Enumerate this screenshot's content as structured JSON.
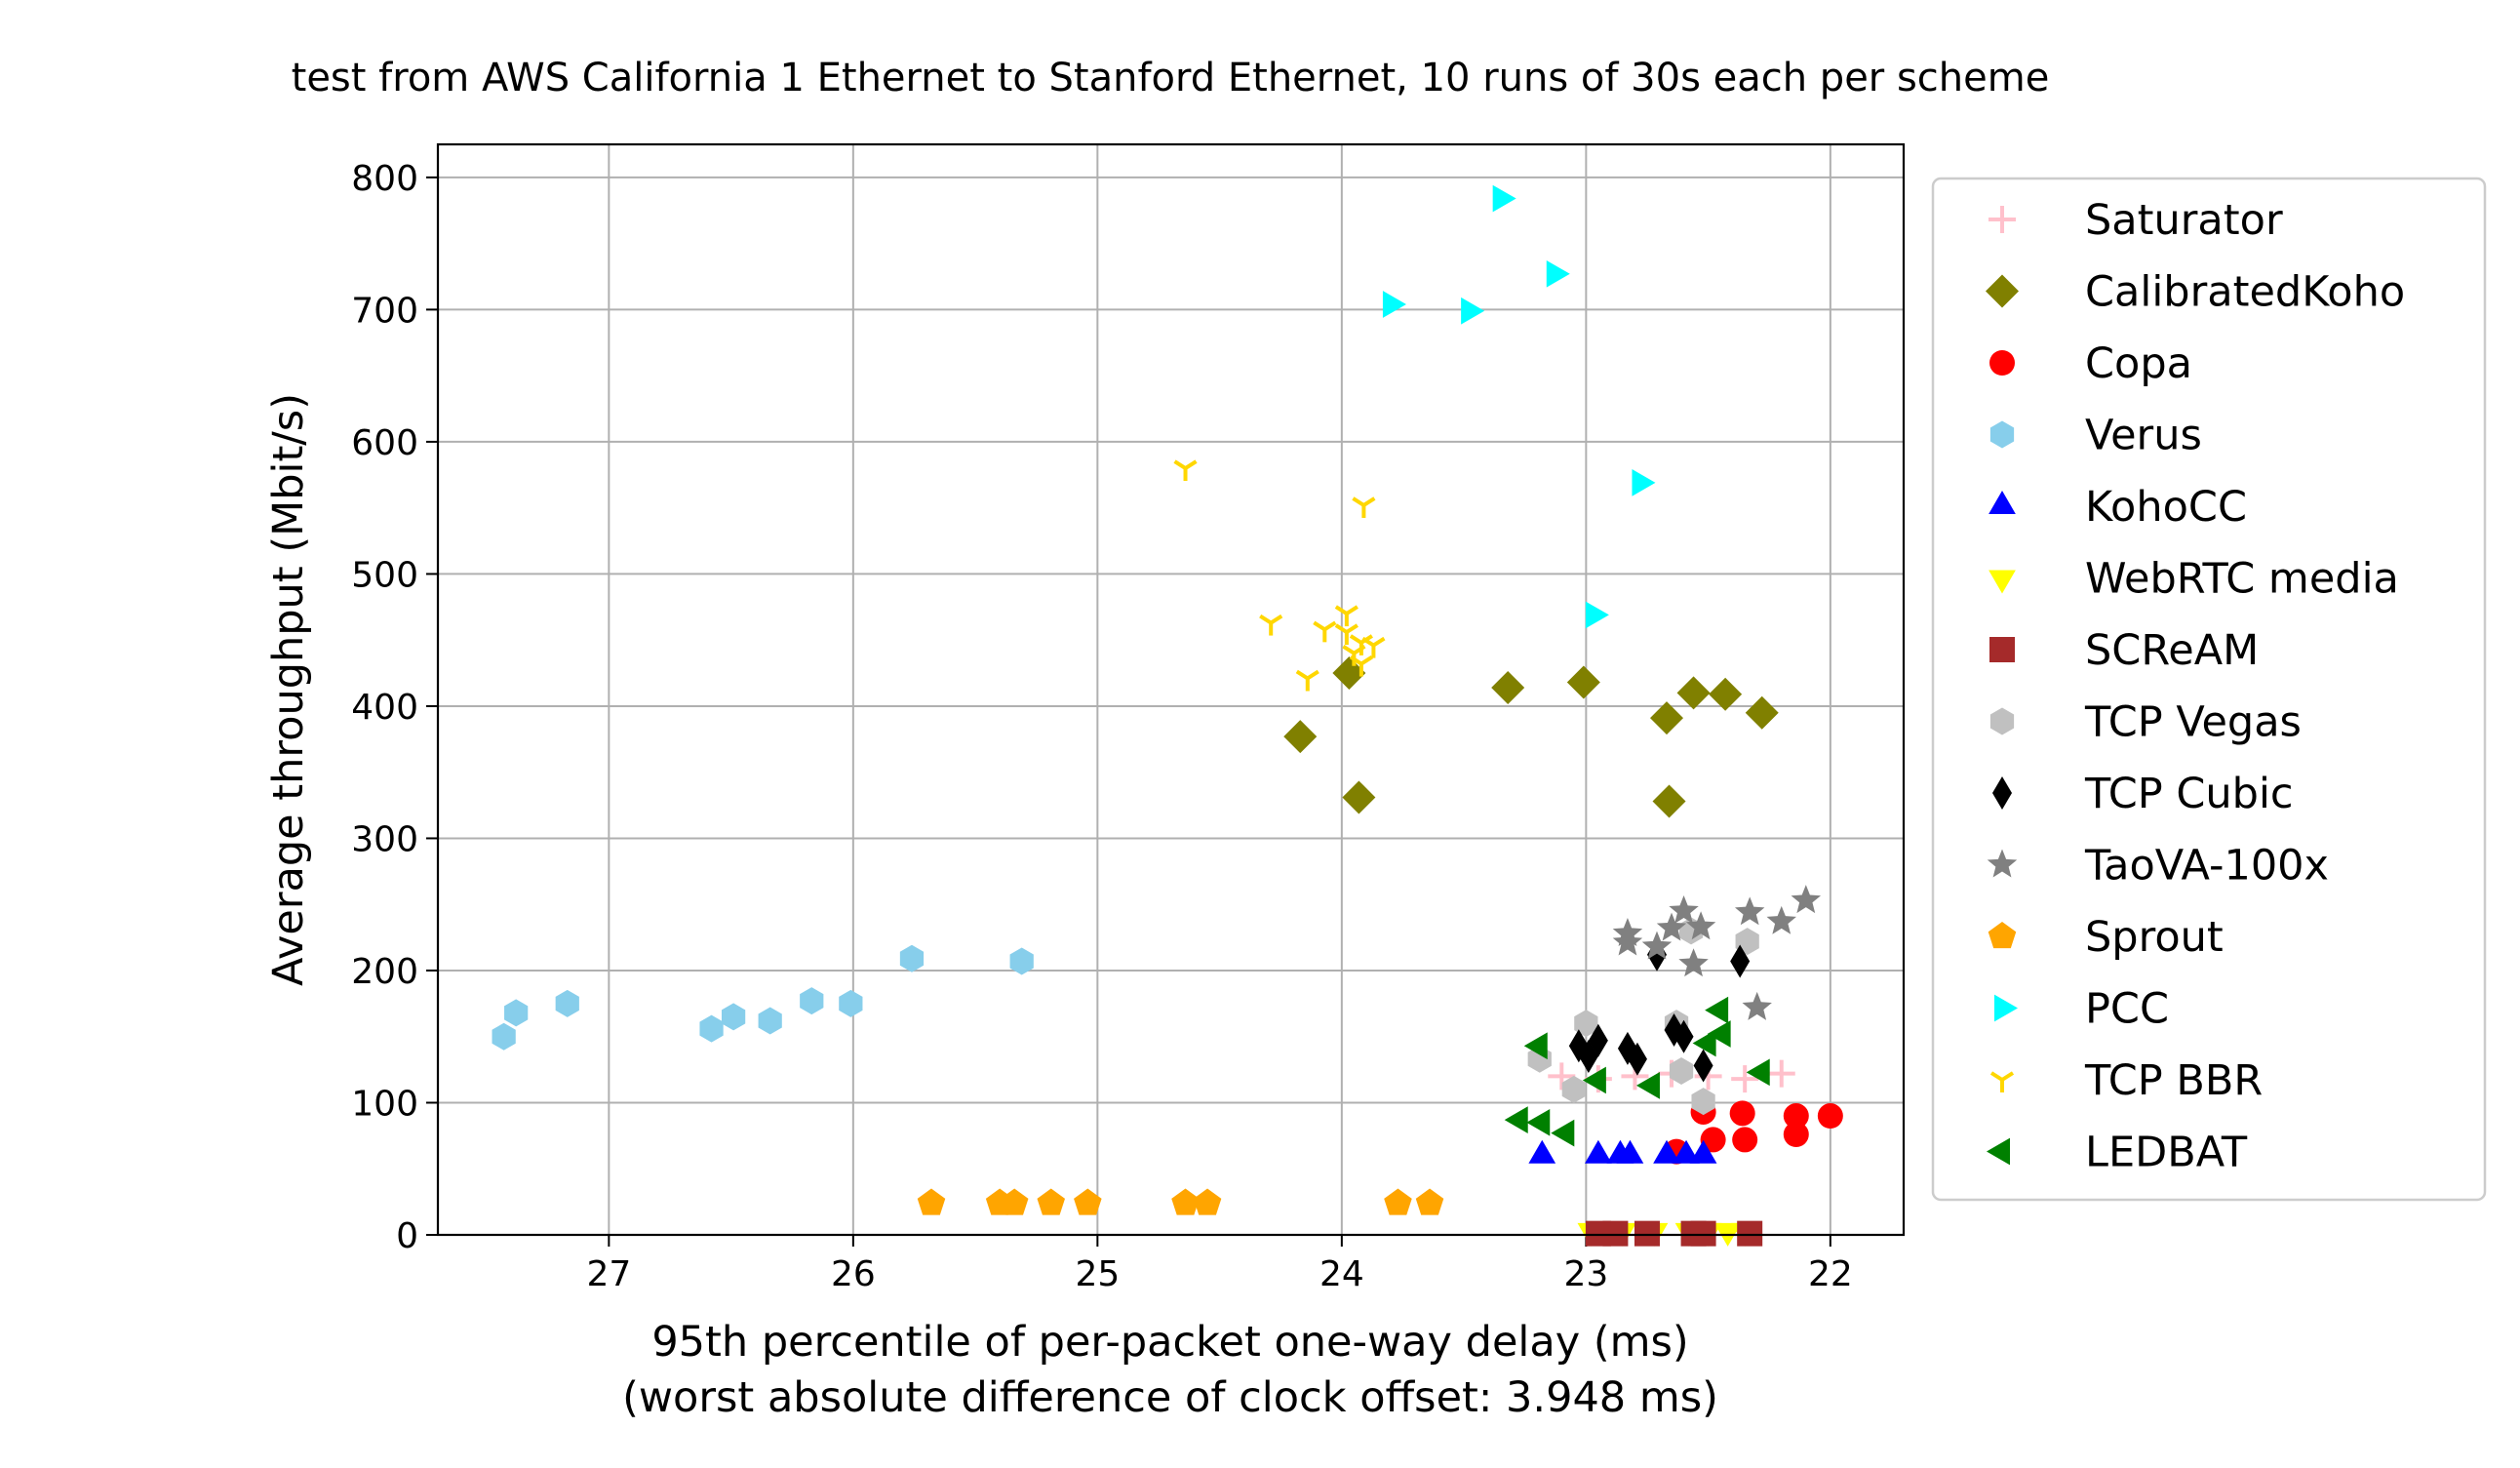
{
  "chart_data": {
    "type": "scatter",
    "title": "test from AWS California 1 Ethernet to Stanford Ethernet, 10 runs of 30s each per scheme",
    "xlabel": "95th percentile of per-packet one-way delay (ms)",
    "xlabel_note": "(worst absolute difference of clock offset: 3.948 ms)",
    "ylabel": "Average throughput (Mbit/s)",
    "xlim": [
      27.7,
      21.7
    ],
    "ylim": [
      0,
      825
    ],
    "x_inverted": true,
    "grid": true,
    "legend_position": "outside-right",
    "xticks": [
      {
        "value": 27,
        "label": "27"
      },
      {
        "value": 26,
        "label": "26"
      },
      {
        "value": 25,
        "label": "25"
      },
      {
        "value": 24,
        "label": "24"
      },
      {
        "value": 23,
        "label": "23"
      },
      {
        "value": 22,
        "label": "22"
      }
    ],
    "yticks": [
      {
        "value": 0,
        "label": "0"
      },
      {
        "value": 100,
        "label": "100"
      },
      {
        "value": 200,
        "label": "200"
      },
      {
        "value": 300,
        "label": "300"
      },
      {
        "value": 400,
        "label": "400"
      },
      {
        "value": 500,
        "label": "500"
      },
      {
        "value": 600,
        "label": "600"
      },
      {
        "value": 700,
        "label": "700"
      },
      {
        "value": 800,
        "label": "800"
      }
    ],
    "series": [
      {
        "name": "Saturator",
        "marker": "plus",
        "color": "#ffc0cb",
        "points": [
          [
            23.1,
            120
          ],
          [
            22.95,
            118
          ],
          [
            22.8,
            120
          ],
          [
            22.65,
            122
          ],
          [
            22.5,
            120
          ],
          [
            22.35,
            118
          ],
          [
            22.2,
            122
          ]
        ]
      },
      {
        "name": "CalibratedKoho",
        "marker": "diamond",
        "color": "#808000",
        "points": [
          [
            24.17,
            377
          ],
          [
            23.97,
            425
          ],
          [
            23.93,
            331
          ],
          [
            23.32,
            414
          ],
          [
            23.01,
            418
          ],
          [
            22.67,
            391
          ],
          [
            22.66,
            328
          ],
          [
            22.56,
            410
          ],
          [
            22.43,
            409
          ],
          [
            22.28,
            395
          ]
        ]
      },
      {
        "name": "Copa",
        "marker": "circle",
        "color": "#ff0000",
        "points": [
          [
            22.63,
            63
          ],
          [
            22.52,
            93
          ],
          [
            22.48,
            72
          ],
          [
            22.36,
            92
          ],
          [
            22.35,
            72
          ],
          [
            22.14,
            90
          ],
          [
            22.14,
            76
          ],
          [
            22.0,
            90
          ]
        ]
      },
      {
        "name": "Verus",
        "marker": "hexagon",
        "color": "#87ceeb",
        "points": [
          [
            27.43,
            150
          ],
          [
            27.38,
            168
          ],
          [
            27.17,
            175
          ],
          [
            26.58,
            156
          ],
          [
            26.49,
            165
          ],
          [
            26.34,
            162
          ],
          [
            26.17,
            177
          ],
          [
            26.01,
            175
          ],
          [
            25.76,
            209
          ],
          [
            25.31,
            207
          ]
        ]
      },
      {
        "name": "KohoCC",
        "marker": "triangle-up",
        "color": "#0000ff",
        "points": [
          [
            23.18,
            60
          ],
          [
            22.95,
            60
          ],
          [
            22.86,
            60
          ],
          [
            22.82,
            60
          ],
          [
            22.67,
            60
          ],
          [
            22.59,
            60
          ],
          [
            22.52,
            60
          ]
        ]
      },
      {
        "name": "WebRTC media",
        "marker": "triangle-down",
        "color": "#ffff00",
        "points": [
          [
            22.98,
            3
          ],
          [
            22.9,
            3
          ],
          [
            22.85,
            3
          ],
          [
            22.72,
            3
          ],
          [
            22.58,
            3
          ],
          [
            22.5,
            3
          ],
          [
            22.42,
            3
          ],
          [
            22.35,
            3
          ]
        ]
      },
      {
        "name": "SCReAM",
        "marker": "square",
        "color": "#a52a2a",
        "points": [
          [
            22.95,
            1
          ],
          [
            22.88,
            1
          ],
          [
            22.75,
            1
          ],
          [
            22.56,
            1
          ],
          [
            22.52,
            1
          ],
          [
            22.33,
            1
          ]
        ]
      },
      {
        "name": "TCP Vegas",
        "marker": "hexagon",
        "color": "#c0c0c0",
        "points": [
          [
            23.19,
            133
          ],
          [
            23.05,
            110
          ],
          [
            23.0,
            160
          ],
          [
            22.63,
            160
          ],
          [
            22.61,
            124
          ],
          [
            22.57,
            230
          ],
          [
            22.52,
            101
          ],
          [
            22.34,
            222
          ]
        ]
      },
      {
        "name": "TCP Cubic",
        "marker": "thin-diamond",
        "color": "#000000",
        "points": [
          [
            23.03,
            143
          ],
          [
            22.99,
            135
          ],
          [
            22.95,
            147
          ],
          [
            22.83,
            141
          ],
          [
            22.79,
            133
          ],
          [
            22.71,
            212
          ],
          [
            22.64,
            155
          ],
          [
            22.6,
            150
          ],
          [
            22.52,
            128
          ],
          [
            22.37,
            207
          ]
        ]
      },
      {
        "name": "TaoVA-100x",
        "marker": "star",
        "color": "#808080",
        "points": [
          [
            22.83,
            228
          ],
          [
            22.83,
            221
          ],
          [
            22.71,
            218
          ],
          [
            22.65,
            232
          ],
          [
            22.6,
            245
          ],
          [
            22.56,
            205
          ],
          [
            22.53,
            233
          ],
          [
            22.33,
            244
          ],
          [
            22.3,
            172
          ],
          [
            22.2,
            237
          ],
          [
            22.1,
            253
          ]
        ]
      },
      {
        "name": "Sprout",
        "marker": "pentagon",
        "color": "#ffa500",
        "points": [
          [
            25.68,
            24
          ],
          [
            25.4,
            24
          ],
          [
            25.34,
            24
          ],
          [
            25.19,
            24
          ],
          [
            25.04,
            24
          ],
          [
            24.64,
            24
          ],
          [
            24.55,
            24
          ],
          [
            23.77,
            24
          ],
          [
            23.64,
            24
          ]
        ]
      },
      {
        "name": "PCC",
        "marker": "triangle-right",
        "color": "#00ffff",
        "points": [
          [
            23.35,
            784
          ],
          [
            23.8,
            704
          ],
          [
            23.48,
            699
          ],
          [
            23.13,
            727
          ],
          [
            22.78,
            569
          ],
          [
            22.97,
            469
          ]
        ]
      },
      {
        "name": "TCP BBR",
        "marker": "tri-down",
        "color": "#ffd700",
        "points": [
          [
            24.64,
            580
          ],
          [
            23.91,
            552
          ],
          [
            24.29,
            463
          ],
          [
            24.07,
            458
          ],
          [
            23.98,
            470
          ],
          [
            24.14,
            421
          ],
          [
            23.92,
            448
          ],
          [
            23.87,
            446
          ],
          [
            23.95,
            440
          ],
          [
            23.92,
            432
          ],
          [
            23.98,
            456
          ]
        ]
      },
      {
        "name": "LEDBAT",
        "marker": "triangle-left",
        "color": "#008000",
        "points": [
          [
            23.27,
            87
          ],
          [
            23.19,
            143
          ],
          [
            23.18,
            85
          ],
          [
            23.08,
            77
          ],
          [
            22.95,
            117
          ],
          [
            22.73,
            113
          ],
          [
            22.5,
            145
          ],
          [
            22.44,
            152
          ],
          [
            22.45,
            170
          ],
          [
            22.28,
            123
          ]
        ]
      }
    ]
  }
}
